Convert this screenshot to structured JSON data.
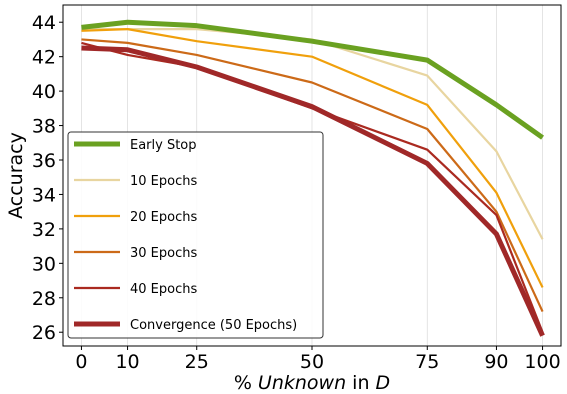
{
  "chart_data": {
    "type": "line",
    "xlabel": {
      "prefix": "% ",
      "italic_word": "Unknown",
      "middle": " in ",
      "italic_var": "D"
    },
    "ylabel": "Accuracy",
    "x": [
      0,
      10,
      25,
      50,
      75,
      90,
      100
    ],
    "xticks": [
      "0",
      "10",
      "25",
      "50",
      "75",
      "90",
      "100"
    ],
    "yticks": [
      "26",
      "28",
      "30",
      "32",
      "34",
      "36",
      "38",
      "40",
      "42",
      "44"
    ],
    "xlim": [
      -4,
      104
    ],
    "ylim": [
      25.2,
      45
    ],
    "grid": "x-only",
    "legend_position": "lower-left",
    "series": [
      {
        "name": "Early Stop",
        "color": "#6aa121",
        "values": [
          43.7,
          44.0,
          43.8,
          42.9,
          41.8,
          39.2,
          37.3
        ]
      },
      {
        "name": "10 Epochs",
        "color": "#e8d5a0",
        "values": [
          43.6,
          43.6,
          43.6,
          43.0,
          40.9,
          36.5,
          31.4
        ]
      },
      {
        "name": "20 Epochs",
        "color": "#f0a00c",
        "values": [
          43.5,
          43.6,
          42.9,
          42.0,
          39.2,
          34.1,
          28.6
        ]
      },
      {
        "name": "30 Epochs",
        "color": "#cc6a18",
        "values": [
          43.0,
          42.8,
          42.1,
          40.5,
          37.8,
          33.0,
          27.2
        ]
      },
      {
        "name": "40 Epochs",
        "color": "#aa2a20",
        "values": [
          42.8,
          42.1,
          41.4,
          39.0,
          36.6,
          32.8,
          26.0
        ]
      },
      {
        "name": "Convergence (50 Epochs)",
        "color": "#a02828",
        "values": [
          42.5,
          42.4,
          41.4,
          39.1,
          35.8,
          31.7,
          25.8
        ]
      }
    ]
  }
}
